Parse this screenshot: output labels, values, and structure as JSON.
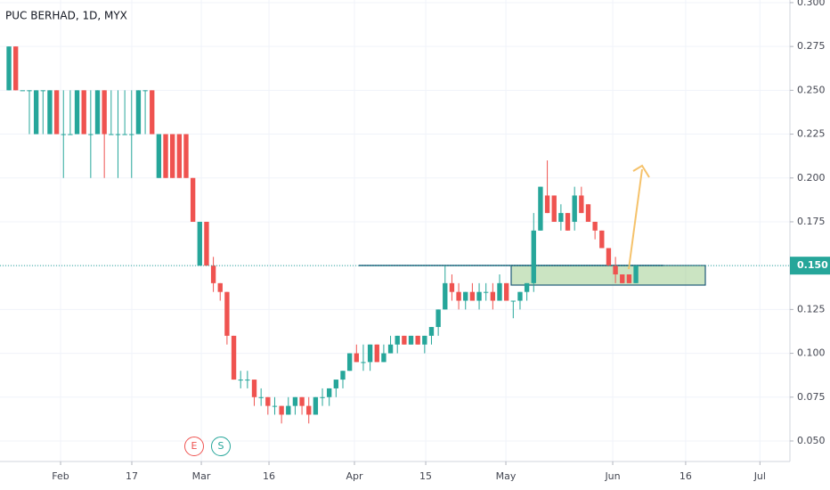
{
  "chart_data": {
    "type": "candlestick",
    "title": "PUC BERHAD, 1D, MYX",
    "up_color": "#26a69a",
    "down_color": "#ef5350",
    "ylim": [
      0.0383,
      0.3015
    ],
    "yticks": [
      {
        "value": 0.05,
        "label": "0.050"
      },
      {
        "value": 0.075,
        "label": "0.075"
      },
      {
        "value": 0.1,
        "label": "0.100"
      },
      {
        "value": 0.125,
        "label": "0.125"
      },
      {
        "value": 0.15,
        "label": "0.150"
      },
      {
        "value": 0.175,
        "label": "0.175"
      },
      {
        "value": 0.2,
        "label": "0.200"
      },
      {
        "value": 0.225,
        "label": "0.225"
      },
      {
        "value": 0.25,
        "label": "0.250"
      },
      {
        "value": 0.275,
        "label": "0.275"
      },
      {
        "value": 0.3,
        "label": "0.300"
      }
    ],
    "xlim": [
      -1.31,
      114.6
    ],
    "xticks": [
      {
        "value": 7.58,
        "label": "Feb"
      },
      {
        "value": 18.03,
        "label": "17"
      },
      {
        "value": 28.23,
        "label": "Mar"
      },
      {
        "value": 38.16,
        "label": "16"
      },
      {
        "value": 50.7,
        "label": "Apr"
      },
      {
        "value": 61.16,
        "label": "15"
      },
      {
        "value": 72.92,
        "label": "May"
      },
      {
        "value": 88.6,
        "label": "Jun"
      },
      {
        "value": 99.3,
        "label": "16"
      },
      {
        "value": 110.2,
        "label": "Jul"
      }
    ],
    "grid": true,
    "last_price": {
      "value": 0.15,
      "label": "0.150"
    },
    "events": [
      "E",
      "S"
    ],
    "ohlc": [
      [
        0.25,
        0.275,
        0.25,
        0.275
      ],
      [
        0.275,
        0.275,
        0.25,
        0.25
      ],
      [
        0.25,
        0.25,
        0.25,
        0.25
      ],
      [
        0.25,
        0.25,
        0.225,
        0.25
      ],
      [
        0.225,
        0.25,
        0.225,
        0.25
      ],
      [
        0.25,
        0.25,
        0.225,
        0.25
      ],
      [
        0.225,
        0.25,
        0.225,
        0.25
      ],
      [
        0.25,
        0.25,
        0.225,
        0.225
      ],
      [
        0.225,
        0.25,
        0.2,
        0.225
      ],
      [
        0.225,
        0.25,
        0.225,
        0.225
      ],
      [
        0.225,
        0.25,
        0.225,
        0.25
      ],
      [
        0.25,
        0.25,
        0.225,
        0.225
      ],
      [
        0.225,
        0.25,
        0.2,
        0.225
      ],
      [
        0.225,
        0.25,
        0.225,
        0.25
      ],
      [
        0.25,
        0.25,
        0.2,
        0.225
      ],
      [
        0.225,
        0.25,
        0.225,
        0.225
      ],
      [
        0.225,
        0.25,
        0.2,
        0.225
      ],
      [
        0.225,
        0.25,
        0.225,
        0.225
      ],
      [
        0.225,
        0.25,
        0.2,
        0.225
      ],
      [
        0.225,
        0.25,
        0.225,
        0.25
      ],
      [
        0.25,
        0.25,
        0.225,
        0.25
      ],
      [
        0.25,
        0.25,
        0.225,
        0.225
      ],
      [
        0.2,
        0.225,
        0.2,
        0.225
      ],
      [
        0.225,
        0.225,
        0.2,
        0.2
      ],
      [
        0.225,
        0.225,
        0.2,
        0.2
      ],
      [
        0.225,
        0.225,
        0.2,
        0.2
      ],
      [
        0.225,
        0.225,
        0.2,
        0.2
      ],
      [
        0.2,
        0.2,
        0.175,
        0.175
      ],
      [
        0.15,
        0.175,
        0.15,
        0.175
      ],
      [
        0.175,
        0.175,
        0.15,
        0.15
      ],
      [
        0.15,
        0.155,
        0.135,
        0.14
      ],
      [
        0.14,
        0.14,
        0.13,
        0.135
      ],
      [
        0.135,
        0.135,
        0.105,
        0.11
      ],
      [
        0.11,
        0.11,
        0.085,
        0.085
      ],
      [
        0.085,
        0.09,
        0.08,
        0.085
      ],
      [
        0.085,
        0.09,
        0.08,
        0.085
      ],
      [
        0.085,
        0.085,
        0.07,
        0.075
      ],
      [
        0.075,
        0.08,
        0.07,
        0.075
      ],
      [
        0.075,
        0.075,
        0.065,
        0.07
      ],
      [
        0.07,
        0.075,
        0.065,
        0.07
      ],
      [
        0.07,
        0.07,
        0.06,
        0.065
      ],
      [
        0.065,
        0.075,
        0.065,
        0.07
      ],
      [
        0.07,
        0.075,
        0.065,
        0.075
      ],
      [
        0.075,
        0.075,
        0.065,
        0.07
      ],
      [
        0.07,
        0.075,
        0.06,
        0.065
      ],
      [
        0.065,
        0.075,
        0.065,
        0.075
      ],
      [
        0.075,
        0.08,
        0.07,
        0.075
      ],
      [
        0.075,
        0.08,
        0.07,
        0.08
      ],
      [
        0.08,
        0.085,
        0.075,
        0.085
      ],
      [
        0.085,
        0.09,
        0.08,
        0.09
      ],
      [
        0.09,
        0.1,
        0.09,
        0.1
      ],
      [
        0.1,
        0.105,
        0.095,
        0.095
      ],
      [
        0.095,
        0.105,
        0.09,
        0.095
      ],
      [
        0.095,
        0.105,
        0.09,
        0.105
      ],
      [
        0.105,
        0.105,
        0.095,
        0.095
      ],
      [
        0.095,
        0.105,
        0.095,
        0.1
      ],
      [
        0.1,
        0.11,
        0.1,
        0.105
      ],
      [
        0.105,
        0.11,
        0.1,
        0.11
      ],
      [
        0.11,
        0.11,
        0.105,
        0.105
      ],
      [
        0.105,
        0.11,
        0.105,
        0.11
      ],
      [
        0.11,
        0.11,
        0.105,
        0.105
      ],
      [
        0.105,
        0.11,
        0.1,
        0.11
      ],
      [
        0.11,
        0.115,
        0.105,
        0.115
      ],
      [
        0.115,
        0.125,
        0.11,
        0.125
      ],
      [
        0.125,
        0.15,
        0.125,
        0.14
      ],
      [
        0.14,
        0.145,
        0.13,
        0.135
      ],
      [
        0.135,
        0.14,
        0.125,
        0.13
      ],
      [
        0.13,
        0.135,
        0.125,
        0.135
      ],
      [
        0.135,
        0.14,
        0.13,
        0.13
      ],
      [
        0.13,
        0.14,
        0.125,
        0.135
      ],
      [
        0.135,
        0.14,
        0.13,
        0.135
      ],
      [
        0.135,
        0.14,
        0.125,
        0.13
      ],
      [
        0.13,
        0.145,
        0.13,
        0.14
      ],
      [
        0.14,
        0.14,
        0.13,
        0.13
      ],
      [
        0.13,
        0.13,
        0.12,
        0.13
      ],
      [
        0.13,
        0.135,
        0.125,
        0.135
      ],
      [
        0.135,
        0.14,
        0.13,
        0.14
      ],
      [
        0.14,
        0.18,
        0.135,
        0.17
      ],
      [
        0.17,
        0.195,
        0.17,
        0.195
      ],
      [
        0.19,
        0.21,
        0.18,
        0.18
      ],
      [
        0.19,
        0.19,
        0.175,
        0.175
      ],
      [
        0.175,
        0.185,
        0.17,
        0.18
      ],
      [
        0.18,
        0.18,
        0.17,
        0.17
      ],
      [
        0.175,
        0.195,
        0.17,
        0.19
      ],
      [
        0.19,
        0.195,
        0.18,
        0.18
      ],
      [
        0.185,
        0.185,
        0.175,
        0.175
      ],
      [
        0.175,
        0.175,
        0.165,
        0.17
      ],
      [
        0.17,
        0.17,
        0.16,
        0.16
      ],
      [
        0.16,
        0.16,
        0.15,
        0.15
      ],
      [
        0.15,
        0.155,
        0.14,
        0.145
      ],
      [
        0.145,
        0.145,
        0.14,
        0.14
      ],
      [
        0.145,
        0.145,
        0.14,
        0.14
      ],
      [
        0.14,
        0.15,
        0.14,
        0.15
      ]
    ]
  }
}
